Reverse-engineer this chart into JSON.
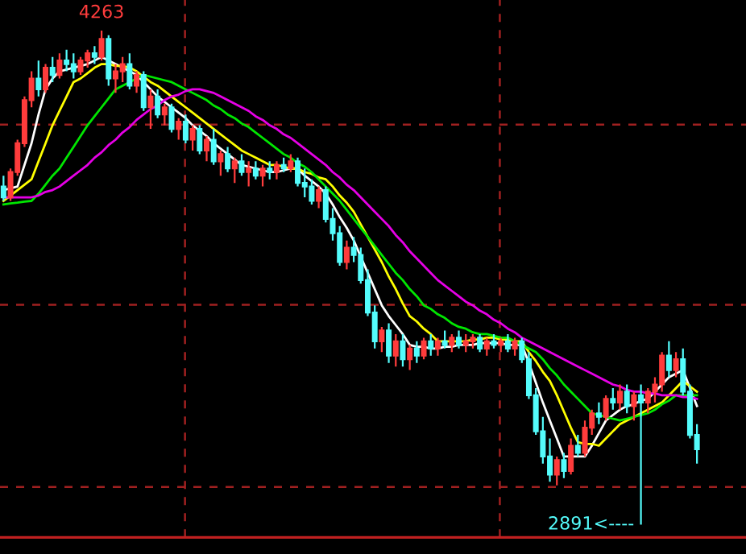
{
  "chart_data": {
    "type": "candlestick",
    "categories": [
      null,
      null,
      null,
      null,
      null,
      null,
      null,
      null,
      null,
      null,
      null,
      null,
      null,
      null,
      null,
      null,
      null,
      null,
      null,
      null,
      null,
      null,
      null,
      null,
      null,
      null,
      null,
      null,
      null,
      null,
      null,
      null,
      null,
      null,
      null,
      null,
      null,
      null,
      null,
      null,
      null,
      null,
      null,
      null,
      null,
      null,
      null,
      null,
      null,
      null,
      null,
      null,
      null,
      null,
      null,
      null,
      null,
      null,
      null,
      null,
      null,
      null,
      null,
      null,
      null,
      null,
      null,
      null,
      null,
      null,
      null,
      null,
      null,
      null,
      null,
      null,
      null,
      null,
      null,
      null,
      null,
      null,
      null,
      null,
      null,
      null,
      null,
      null,
      null,
      null,
      null,
      null,
      null,
      null,
      null,
      null,
      null,
      null,
      null,
      null
    ],
    "ohlc": [
      [
        3830,
        3860,
        3790,
        3800
      ],
      [
        3800,
        3880,
        3790,
        3870
      ],
      [
        3870,
        3960,
        3860,
        3950
      ],
      [
        3950,
        4080,
        3940,
        4070
      ],
      [
        4070,
        4150,
        4050,
        4130
      ],
      [
        4130,
        4180,
        4080,
        4100
      ],
      [
        4100,
        4170,
        4090,
        4160
      ],
      [
        4160,
        4190,
        4120,
        4140
      ],
      [
        4140,
        4200,
        4130,
        4180
      ],
      [
        4180,
        4210,
        4150,
        4170
      ],
      [
        4170,
        4200,
        4130,
        4150
      ],
      [
        4150,
        4190,
        4140,
        4180
      ],
      [
        4180,
        4210,
        4160,
        4200
      ],
      [
        4200,
        4220,
        4170,
        4190
      ],
      [
        4190,
        4263,
        4180,
        4240
      ],
      [
        4240,
        4250,
        4110,
        4130
      ],
      [
        4130,
        4170,
        4090,
        4150
      ],
      [
        4150,
        4190,
        4120,
        4170
      ],
      [
        4170,
        4200,
        4100,
        4110
      ],
      [
        4110,
        4150,
        4090,
        4140
      ],
      [
        4140,
        4150,
        4040,
        4050
      ],
      [
        4050,
        4100,
        3990,
        4080
      ],
      [
        4080,
        4100,
        4020,
        4030
      ],
      [
        4030,
        4060,
        4000,
        4050
      ],
      [
        4050,
        4060,
        3980,
        3990
      ],
      [
        3990,
        4020,
        3960,
        4010
      ],
      [
        4010,
        4030,
        3950,
        3960
      ],
      [
        3960,
        4000,
        3930,
        3990
      ],
      [
        3990,
        4000,
        3920,
        3930
      ],
      [
        3930,
        3970,
        3900,
        3960
      ],
      [
        3960,
        3990,
        3890,
        3900
      ],
      [
        3900,
        3930,
        3860,
        3920
      ],
      [
        3920,
        3940,
        3870,
        3880
      ],
      [
        3880,
        3910,
        3840,
        3900
      ],
      [
        3900,
        3920,
        3860,
        3870
      ],
      [
        3870,
        3900,
        3830,
        3880
      ],
      [
        3880,
        3900,
        3850,
        3860
      ],
      [
        3860,
        3890,
        3830,
        3880
      ],
      [
        3880,
        3900,
        3850,
        3870
      ],
      [
        3870,
        3900,
        3850,
        3890
      ],
      [
        3890,
        3910,
        3870,
        3880
      ],
      [
        3880,
        3920,
        3870,
        3900
      ],
      [
        3900,
        3910,
        3830,
        3840
      ],
      [
        3840,
        3880,
        3800,
        3830
      ],
      [
        3830,
        3850,
        3780,
        3790
      ],
      [
        3790,
        3830,
        3770,
        3820
      ],
      [
        3820,
        3830,
        3730,
        3740
      ],
      [
        3740,
        3770,
        3680,
        3700
      ],
      [
        3700,
        3720,
        3610,
        3620
      ],
      [
        3620,
        3680,
        3600,
        3660
      ],
      [
        3660,
        3690,
        3620,
        3640
      ],
      [
        3640,
        3660,
        3560,
        3570
      ],
      [
        3570,
        3600,
        3470,
        3480
      ],
      [
        3480,
        3500,
        3380,
        3400
      ],
      [
        3400,
        3440,
        3370,
        3430
      ],
      [
        3430,
        3450,
        3340,
        3360
      ],
      [
        3360,
        3420,
        3330,
        3400
      ],
      [
        3400,
        3420,
        3330,
        3350
      ],
      [
        3350,
        3390,
        3320,
        3380
      ],
      [
        3380,
        3400,
        3340,
        3360
      ],
      [
        3360,
        3410,
        3350,
        3400
      ],
      [
        3400,
        3420,
        3360,
        3380
      ],
      [
        3380,
        3410,
        3360,
        3400
      ],
      [
        3400,
        3430,
        3380,
        3390
      ],
      [
        3390,
        3420,
        3370,
        3410
      ],
      [
        3410,
        3430,
        3380,
        3390
      ],
      [
        3390,
        3420,
        3370,
        3400
      ],
      [
        3400,
        3420,
        3380,
        3410
      ],
      [
        3410,
        3420,
        3370,
        3380
      ],
      [
        3380,
        3410,
        3360,
        3400
      ],
      [
        3400,
        3420,
        3380,
        3390
      ],
      [
        3390,
        3410,
        3370,
        3400
      ],
      [
        3400,
        3420,
        3370,
        3380
      ],
      [
        3380,
        3410,
        3360,
        3400
      ],
      [
        3400,
        3410,
        3340,
        3350
      ],
      [
        3350,
        3370,
        3240,
        3250
      ],
      [
        3250,
        3270,
        3140,
        3150
      ],
      [
        3150,
        3190,
        3060,
        3080
      ],
      [
        3080,
        3130,
        3010,
        3030
      ],
      [
        3030,
        3080,
        3000,
        3070
      ],
      [
        3070,
        3090,
        3020,
        3040
      ],
      [
        3040,
        3130,
        3030,
        3110
      ],
      [
        3110,
        3140,
        3080,
        3090
      ],
      [
        3090,
        3180,
        3080,
        3160
      ],
      [
        3160,
        3210,
        3140,
        3200
      ],
      [
        3200,
        3230,
        3170,
        3190
      ],
      [
        3190,
        3250,
        3180,
        3240
      ],
      [
        3240,
        3270,
        3210,
        3230
      ],
      [
        3230,
        3280,
        3210,
        3260
      ],
      [
        3260,
        3280,
        3200,
        3220
      ],
      [
        3220,
        3260,
        3180,
        3250
      ],
      [
        3250,
        3280,
        2891,
        3230
      ],
      [
        3230,
        3270,
        3200,
        3260
      ],
      [
        3260,
        3300,
        3230,
        3280
      ],
      [
        3280,
        3370,
        3260,
        3360
      ],
      [
        3360,
        3400,
        3300,
        3320
      ],
      [
        3320,
        3370,
        3300,
        3350
      ],
      [
        3350,
        3380,
        3250,
        3260
      ],
      [
        3260,
        3280,
        3130,
        3140
      ],
      [
        3140,
        3170,
        3060,
        3100
      ]
    ],
    "colors": [
      "#54fcfc",
      "#ff3c3c",
      "#ff3c3c",
      "#ff3c3c",
      "#ff3c3c",
      "#54fcfc",
      "#ff3c3c",
      "#54fcfc",
      "#ff3c3c",
      "#54fcfc",
      "#54fcfc",
      "#ff3c3c",
      "#ff3c3c",
      "#54fcfc",
      "#ff3c3c",
      "#54fcfc",
      "#ff3c3c",
      "#ff3c3c",
      "#54fcfc",
      "#ff3c3c",
      "#54fcfc",
      "#ff3c3c",
      "#54fcfc",
      "#ff3c3c",
      "#54fcfc",
      "#ff3c3c",
      "#54fcfc",
      "#ff3c3c",
      "#54fcfc",
      "#ff3c3c",
      "#54fcfc",
      "#ff3c3c",
      "#54fcfc",
      "#ff3c3c",
      "#54fcfc",
      "#ff3c3c",
      "#54fcfc",
      "#ff3c3c",
      "#54fcfc",
      "#ff3c3c",
      "#54fcfc",
      "#ff3c3c",
      "#54fcfc",
      "#54fcfc",
      "#54fcfc",
      "#ff3c3c",
      "#54fcfc",
      "#54fcfc",
      "#54fcfc",
      "#ff3c3c",
      "#54fcfc",
      "#54fcfc",
      "#54fcfc",
      "#54fcfc",
      "#ff3c3c",
      "#54fcfc",
      "#ff3c3c",
      "#54fcfc",
      "#ff3c3c",
      "#54fcfc",
      "#ff3c3c",
      "#54fcfc",
      "#ff3c3c",
      "#54fcfc",
      "#ff3c3c",
      "#54fcfc",
      "#ff3c3c",
      "#ff3c3c",
      "#54fcfc",
      "#ff3c3c",
      "#54fcfc",
      "#ff3c3c",
      "#54fcfc",
      "#ff3c3c",
      "#54fcfc",
      "#54fcfc",
      "#54fcfc",
      "#54fcfc",
      "#54fcfc",
      "#ff3c3c",
      "#54fcfc",
      "#ff3c3c",
      "#54fcfc",
      "#ff3c3c",
      "#ff3c3c",
      "#54fcfc",
      "#ff3c3c",
      "#54fcfc",
      "#ff3c3c",
      "#54fcfc",
      "#ff3c3c",
      "#54fcfc",
      "#ff3c3c",
      "#ff3c3c",
      "#ff3c3c",
      "#54fcfc",
      "#ff3c3c",
      "#54fcfc",
      "#54fcfc",
      "#54fcfc"
    ],
    "series": [
      {
        "type": "line",
        "color": "#ffffff",
        "values": [
          3820,
          3825,
          3830,
          3890,
          3950,
          4030,
          4100,
          4130,
          4150,
          4155,
          4160,
          4165,
          4170,
          4180,
          4190,
          4180,
          4170,
          4160,
          4150,
          4140,
          4120,
          4100,
          4080,
          4065,
          4050,
          4035,
          4020,
          4000,
          3985,
          3970,
          3950,
          3935,
          3920,
          3905,
          3890,
          3885,
          3880,
          3875,
          3870,
          3870,
          3875,
          3880,
          3880,
          3860,
          3845,
          3830,
          3810,
          3780,
          3745,
          3715,
          3680,
          3635,
          3590,
          3545,
          3500,
          3470,
          3445,
          3420,
          3390,
          3385,
          3385,
          3380,
          3380,
          3385,
          3385,
          3390,
          3390,
          3390,
          3395,
          3395,
          3395,
          3395,
          3390,
          3390,
          3390,
          3340,
          3285,
          3230,
          3180,
          3130,
          3080,
          3080,
          3080,
          3080,
          3110,
          3145,
          3180,
          3195,
          3210,
          3220,
          3225,
          3235,
          3240,
          3260,
          3280,
          3300,
          3310,
          3320,
          3270,
          3220
        ]
      },
      {
        "type": "line",
        "color": "#ffff00",
        "values": [
          3790,
          3805,
          3820,
          3835,
          3850,
          3900,
          3950,
          4000,
          4040,
          4080,
          4120,
          4130,
          4145,
          4160,
          4170,
          4170,
          4165,
          4165,
          4160,
          4150,
          4135,
          4120,
          4110,
          4095,
          4080,
          4065,
          4050,
          4035,
          4020,
          4005,
          3990,
          3975,
          3960,
          3945,
          3930,
          3920,
          3910,
          3900,
          3890,
          3890,
          3885,
          3880,
          3880,
          3870,
          3865,
          3855,
          3850,
          3830,
          3805,
          3785,
          3760,
          3725,
          3690,
          3655,
          3620,
          3580,
          3545,
          3505,
          3470,
          3455,
          3435,
          3420,
          3400,
          3400,
          3400,
          3400,
          3400,
          3405,
          3405,
          3410,
          3410,
          3405,
          3405,
          3400,
          3400,
          3370,
          3345,
          3315,
          3290,
          3250,
          3205,
          3160,
          3120,
          3115,
          3115,
          3110,
          3130,
          3150,
          3170,
          3180,
          3190,
          3200,
          3210,
          3220,
          3230,
          3250,
          3270,
          3290,
          3275,
          3260
        ]
      },
      {
        "type": "line",
        "color": "#00e600",
        "values": [
          3780,
          3783,
          3785,
          3788,
          3790,
          3810,
          3835,
          3860,
          3880,
          3910,
          3940,
          3970,
          4000,
          4025,
          4050,
          4075,
          4100,
          4110,
          4120,
          4130,
          4140,
          4135,
          4130,
          4125,
          4120,
          4110,
          4100,
          4090,
          4080,
          4070,
          4055,
          4045,
          4030,
          4020,
          4005,
          3995,
          3980,
          3965,
          3950,
          3935,
          3920,
          3910,
          3895,
          3885,
          3870,
          3850,
          3830,
          3810,
          3790,
          3765,
          3740,
          3715,
          3690,
          3665,
          3640,
          3615,
          3590,
          3570,
          3545,
          3525,
          3500,
          3490,
          3475,
          3465,
          3450,
          3440,
          3435,
          3425,
          3420,
          3420,
          3415,
          3410,
          3410,
          3400,
          3390,
          3380,
          3370,
          3350,
          3325,
          3305,
          3280,
          3260,
          3240,
          3220,
          3200,
          3195,
          3190,
          3185,
          3180,
          3185,
          3190,
          3195,
          3200,
          3210,
          3225,
          3235,
          3250,
          3250,
          3250,
          3250
        ]
      },
      {
        "type": "line",
        "color": "#e600e6",
        "values": [
          3800,
          3800,
          3800,
          3800,
          3800,
          3805,
          3815,
          3820,
          3830,
          3845,
          3860,
          3875,
          3890,
          3910,
          3925,
          3945,
          3960,
          3980,
          3995,
          4015,
          4030,
          4045,
          4055,
          4070,
          4080,
          4085,
          4095,
          4100,
          4100,
          4095,
          4090,
          4080,
          4070,
          4060,
          4050,
          4040,
          4025,
          4015,
          4000,
          3990,
          3975,
          3965,
          3950,
          3935,
          3920,
          3905,
          3890,
          3870,
          3855,
          3835,
          3820,
          3800,
          3780,
          3760,
          3740,
          3720,
          3695,
          3675,
          3650,
          3630,
          3610,
          3590,
          3570,
          3555,
          3540,
          3525,
          3510,
          3500,
          3485,
          3475,
          3460,
          3450,
          3435,
          3425,
          3410,
          3400,
          3390,
          3380,
          3370,
          3360,
          3350,
          3340,
          3330,
          3320,
          3310,
          3300,
          3290,
          3280,
          3275,
          3265,
          3260,
          3260,
          3255,
          3255,
          3250,
          3250,
          3250,
          3245,
          3245,
          3240
        ]
      }
    ],
    "annotations": [
      "4263",
      "2891<----"
    ]
  }
}
